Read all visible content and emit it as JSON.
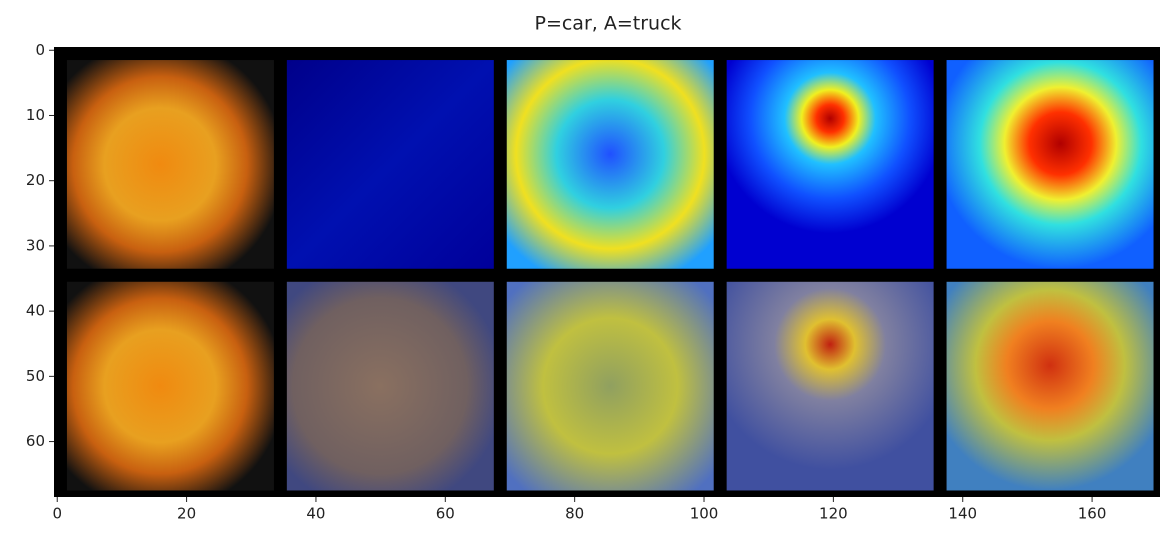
{
  "chart_data": {
    "type": "image",
    "title": "P=car, A=truck",
    "xlim": [
      -0.5,
      170.5
    ],
    "xticks": [
      0,
      20,
      40,
      60,
      80,
      100,
      120,
      140,
      160
    ],
    "ylim": [
      68.5,
      -0.5
    ],
    "yticks": [
      0,
      10,
      20,
      30,
      40,
      50,
      60
    ]
  }
}
